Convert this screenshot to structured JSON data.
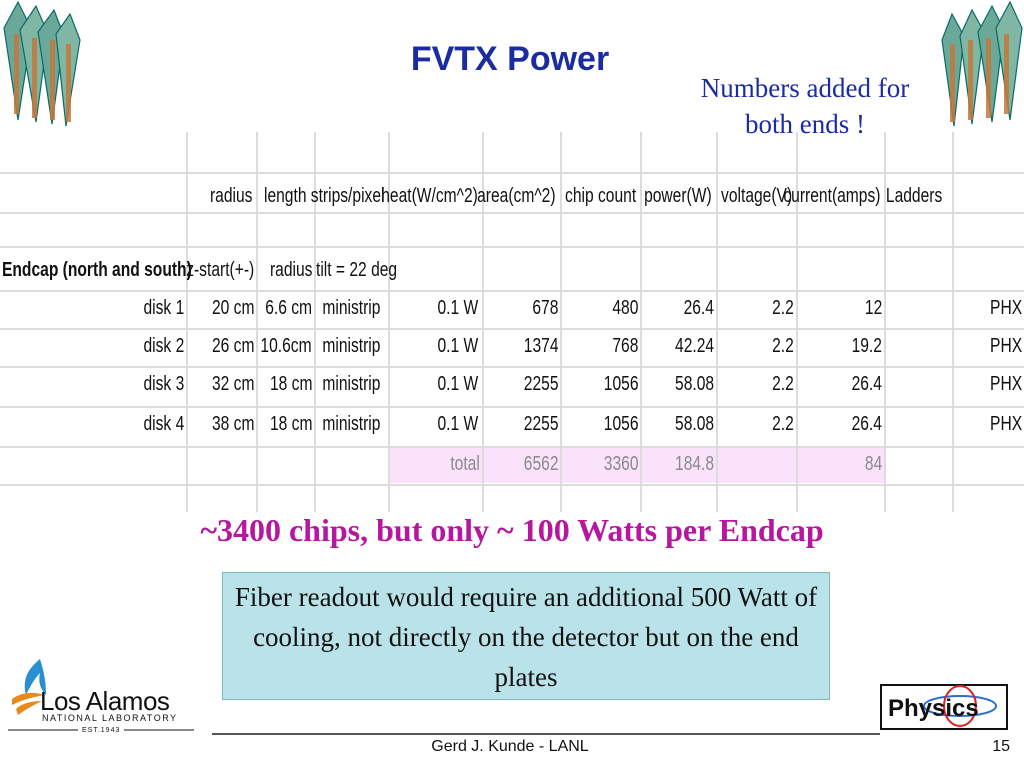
{
  "title": "FVTX Power",
  "note_top": "Numbers added for both ends !",
  "table": {
    "headers": [
      "radius",
      "length",
      "strips/pixel",
      "heat(W/cm^2)",
      "area(cm^2)",
      "chip count",
      "power(W)",
      "voltage(V)",
      "current(amps)",
      "Ladders"
    ],
    "section": [
      "Endcap (north and south)",
      "z-start(+-)",
      "radius",
      "tilt = 22 deg"
    ],
    "rows": [
      [
        "disk 1",
        "20 cm",
        "6.6 cm",
        "ministrip",
        "0.1 W",
        "678",
        "480",
        "26.4",
        "2.2",
        "12",
        "PHX"
      ],
      [
        "disk 2",
        "26 cm",
        "10.6cm",
        "ministrip",
        "0.1 W",
        "1374",
        "768",
        "42.24",
        "2.2",
        "19.2",
        "PHX"
      ],
      [
        "disk 3",
        "32 cm",
        "18 cm",
        "ministrip",
        "0.1 W",
        "2255",
        "1056",
        "58.08",
        "2.2",
        "26.4",
        "PHX"
      ],
      [
        "disk 4",
        "38 cm",
        "18 cm",
        "ministrip",
        "0.1 W",
        "2255",
        "1056",
        "58.08",
        "2.2",
        "26.4",
        "PHX"
      ]
    ],
    "total": [
      "total",
      "6562",
      "3360",
      "184.8",
      "84"
    ]
  },
  "subtitle": "~3400 chips, but only ~ 100 Watts per Endcap",
  "callout": "Fiber readout would require an additional 500 Watt of cooling, not directly on the detector but on the end plates",
  "logo": {
    "name": "Los Alamos",
    "sub": "NATIONAL LABORATORY",
    "est": "EST.1943"
  },
  "physics_logo": "Physics",
  "footer": "Gerd J. Kunde - LANL",
  "page_number": "15",
  "colors": {
    "title": "#1a2ca0",
    "subtitle": "#b5179e",
    "callout_bg": "#b9e3e8",
    "total_bg": "#fbe2fb"
  }
}
